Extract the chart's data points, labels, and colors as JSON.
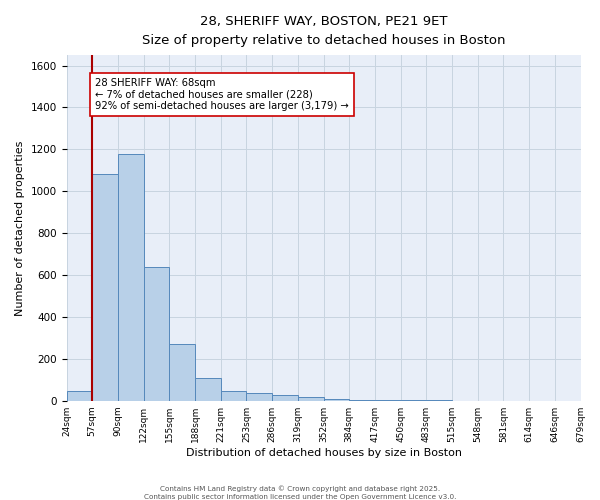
{
  "title_line1": "28, SHERIFF WAY, BOSTON, PE21 9ET",
  "title_line2": "Size of property relative to detached houses in Boston",
  "xlabel": "Distribution of detached houses by size in Boston",
  "ylabel": "Number of detached properties",
  "background_color": "#e8eef8",
  "bar_color": "#b8d0e8",
  "bar_edge_color": "#5588bb",
  "grid_color": "#c8d4e0",
  "annotation_text": "28 SHERIFF WAY: 68sqm\n← 7% of detached houses are smaller (228)\n92% of semi-detached houses are larger (3,179) →",
  "vline_x": 1,
  "vline_color": "#aa0000",
  "ylim": [
    0,
    1650
  ],
  "yticks": [
    0,
    200,
    400,
    600,
    800,
    1000,
    1200,
    1400,
    1600
  ],
  "bin_edges": [
    0,
    1,
    2,
    3,
    4,
    5,
    6,
    7,
    8,
    9,
    10,
    11,
    12,
    13,
    14,
    15,
    16,
    17,
    18,
    19,
    20
  ],
  "bin_labels": [
    "24sqm",
    "57sqm",
    "90sqm",
    "122sqm",
    "155sqm",
    "188sqm",
    "221sqm",
    "253sqm",
    "286sqm",
    "319sqm",
    "352sqm",
    "384sqm",
    "417sqm",
    "450sqm",
    "483sqm",
    "515sqm",
    "548sqm",
    "581sqm",
    "614sqm",
    "646sqm",
    "679sqm"
  ],
  "bin_values": [
    48,
    1080,
    1180,
    640,
    270,
    110,
    48,
    35,
    28,
    16,
    8,
    5,
    4,
    3,
    2,
    0,
    0,
    0,
    0,
    0
  ],
  "footer_line1": "Contains HM Land Registry data © Crown copyright and database right 2025.",
  "footer_line2": "Contains public sector information licensed under the Open Government Licence v3.0."
}
